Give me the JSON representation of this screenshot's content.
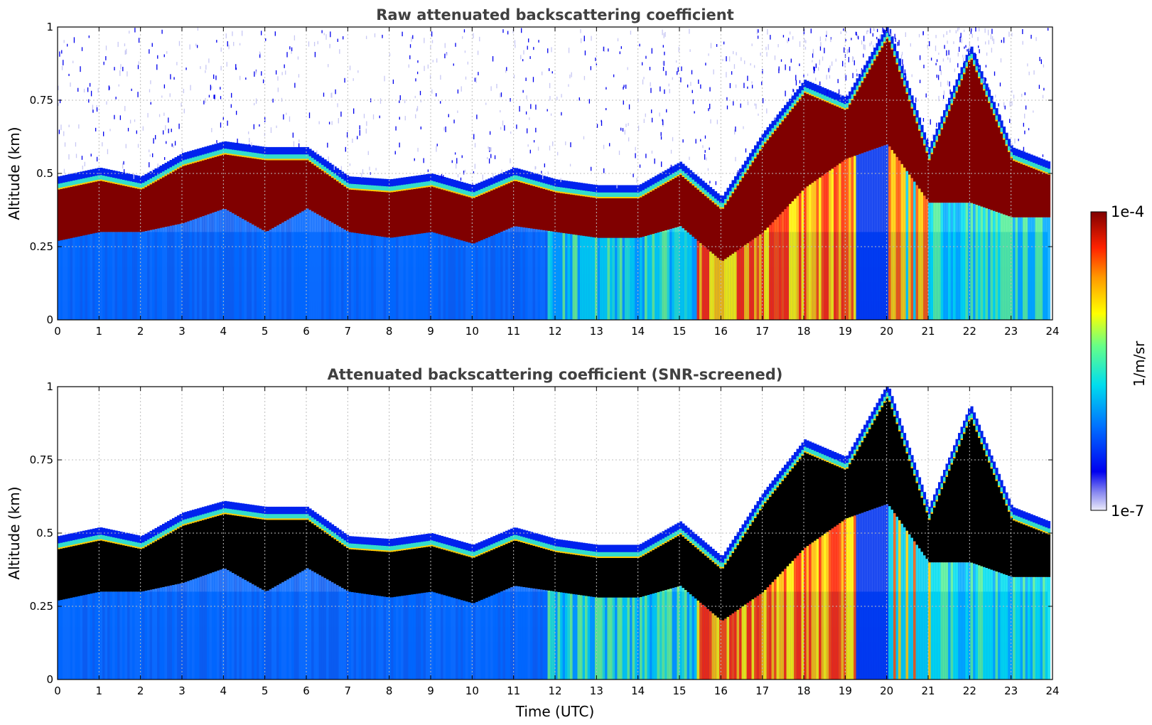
{
  "chart_data": [
    {
      "type": "heatmap",
      "title": "Raw attenuated backscattering coefficient",
      "ylabel": "Altitude (km)",
      "xlabel": "",
      "xlim": [
        0,
        24
      ],
      "ylim": [
        0,
        1
      ],
      "xticks": [
        "0",
        "1",
        "2",
        "3",
        "4",
        "5",
        "6",
        "7",
        "8",
        "9",
        "10",
        "11",
        "12",
        "13",
        "14",
        "15",
        "16",
        "17",
        "18",
        "19",
        "20",
        "21",
        "22",
        "23",
        "24"
      ],
      "yticks": [
        "0",
        "0.25",
        "0.5",
        "0.75",
        "1"
      ],
      "grid": true,
      "noise_above_top": true,
      "cloud_layer": {
        "time_utc": [
          0,
          1,
          2,
          3,
          4,
          5,
          6,
          7,
          8,
          9,
          10,
          11,
          12,
          13,
          14,
          15,
          16,
          17,
          18,
          19,
          20,
          21,
          22,
          23,
          23.9
        ],
        "base_km": [
          0.27,
          0.3,
          0.3,
          0.33,
          0.38,
          0.3,
          0.38,
          0.3,
          0.28,
          0.3,
          0.26,
          0.32,
          0.3,
          0.28,
          0.28,
          0.32,
          0.2,
          0.3,
          0.45,
          0.55,
          0.6,
          0.4,
          0.4,
          0.35,
          0.35
        ],
        "top_km": [
          0.45,
          0.48,
          0.45,
          0.53,
          0.57,
          0.55,
          0.55,
          0.45,
          0.44,
          0.46,
          0.42,
          0.48,
          0.44,
          0.42,
          0.42,
          0.5,
          0.38,
          0.6,
          0.78,
          0.72,
          0.97,
          0.55,
          0.9,
          0.55,
          0.5
        ]
      }
    },
    {
      "type": "heatmap",
      "title": "Attenuated backscattering coefficient (SNR-screened)",
      "ylabel": "Altitude (km)",
      "xlabel": "Time (UTC)",
      "xlim": [
        0,
        24
      ],
      "ylim": [
        0,
        1
      ],
      "xticks": [
        "0",
        "1",
        "2",
        "3",
        "4",
        "5",
        "6",
        "7",
        "8",
        "9",
        "10",
        "11",
        "12",
        "13",
        "14",
        "15",
        "16",
        "17",
        "18",
        "19",
        "20",
        "21",
        "22",
        "23",
        "24"
      ],
      "yticks": [
        "0",
        "0.25",
        "0.5",
        "0.75",
        "1"
      ],
      "grid": true,
      "noise_above_top": false
    }
  ],
  "colorbar": {
    "label": "1/m/sr",
    "max_label": "1e-4",
    "min_label": "1e-7",
    "scale": "log",
    "colormap": "jet"
  }
}
